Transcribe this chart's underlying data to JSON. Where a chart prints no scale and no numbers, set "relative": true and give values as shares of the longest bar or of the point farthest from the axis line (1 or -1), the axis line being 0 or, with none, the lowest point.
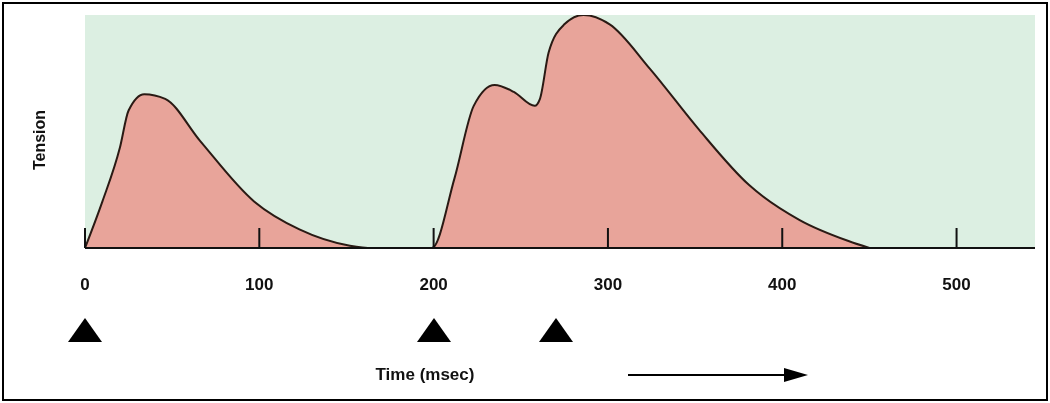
{
  "chart_data": {
    "type": "area",
    "xlabel": "Time (msec)",
    "ylabel": "Tension",
    "relative": true,
    "xlim": [
      0,
      545
    ],
    "xticks": [
      0,
      100,
      200,
      300,
      400,
      500
    ],
    "x": [
      0,
      10,
      20,
      25,
      34,
      46,
      66,
      97,
      123,
      152,
      165,
      199,
      212,
      223,
      235,
      246,
      258,
      261,
      266,
      275,
      286,
      301,
      324,
      352,
      381,
      410,
      438,
      450
    ],
    "series": [
      {
        "color": "#e8a49a",
        "values": [
          0,
          0.2,
          0.43,
          0.59,
          0.66,
          0.64,
          0.46,
          0.2,
          0.08,
          0.01,
          0,
          0,
          0.3,
          0.61,
          0.7,
          0.67,
          0.61,
          0.64,
          0.84,
          0.96,
          1,
          0.96,
          0.77,
          0.51,
          0.27,
          0.12,
          0.03,
          0
        ]
      }
    ]
  }
}
